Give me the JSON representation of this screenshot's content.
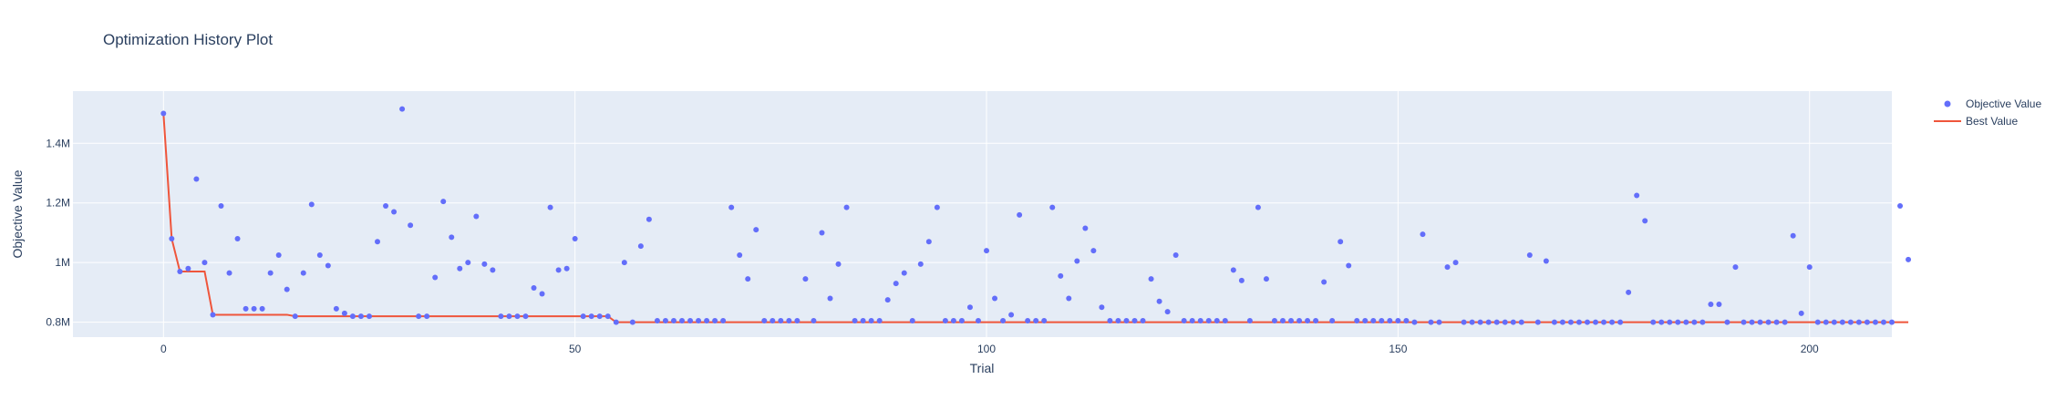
{
  "chart_data": {
    "type": "scatter",
    "title": "Optimization History Plot",
    "xlabel": "Trial",
    "ylabel": "Objective Value",
    "xlim": [
      -11,
      210
    ],
    "ylim": [
      750000,
      1575000
    ],
    "x_ticks": [
      0,
      50,
      100,
      150,
      200
    ],
    "y_ticks": [
      {
        "value": 800000,
        "label": "0.8M"
      },
      {
        "value": 1000000,
        "label": "1M"
      },
      {
        "value": 1200000,
        "label": "1.2M"
      },
      {
        "value": 1400000,
        "label": "1.4M"
      }
    ],
    "grid": true,
    "legend_position": "top-right",
    "colors": {
      "plot_background": "#e5ecf6",
      "grid": "#ffffff",
      "objective": "#636efa",
      "best": "#ef553b"
    },
    "series": [
      {
        "name": "Objective Value",
        "mode": "markers",
        "y": [
          1500000,
          1080000,
          970000,
          980000,
          1280000,
          1000000,
          825000,
          1190000,
          965000,
          1080000,
          845000,
          845000,
          845000,
          965000,
          1025000,
          910000,
          820000,
          965000,
          1195000,
          1025000,
          990000,
          845000,
          830000,
          820000,
          820000,
          820000,
          1070000,
          1190000,
          1170000,
          1515000,
          1125000,
          820000,
          820000,
          950000,
          1205000,
          1085000,
          980000,
          1000000,
          1155000,
          995000,
          975000,
          820000,
          820000,
          820000,
          820000,
          915000,
          895000,
          1185000,
          975000,
          980000,
          1080000,
          820000,
          820000,
          820000,
          820000,
          800000,
          1000000,
          800000,
          1055000,
          1145000,
          805000,
          805000,
          805000,
          805000,
          805000,
          805000,
          805000,
          805000,
          805000,
          1185000,
          1025000,
          945000,
          1110000,
          805000,
          805000,
          805000,
          805000,
          805000,
          945000,
          805000,
          1100000,
          880000,
          995000,
          1185000,
          805000,
          805000,
          805000,
          805000,
          875000,
          930000,
          965000,
          805000,
          995000,
          1070000,
          1185000,
          805000,
          805000,
          805000,
          850000,
          805000,
          1040000,
          880000,
          805000,
          825000,
          1160000,
          805000,
          805000,
          805000,
          1185000,
          955000,
          880000,
          1005000,
          1115000,
          1040000,
          850000,
          805000,
          805000,
          805000,
          805000,
          805000,
          945000,
          870000,
          835000,
          1025000,
          805000,
          805000,
          805000,
          805000,
          805000,
          805000,
          975000,
          940000,
          805000,
          1185000,
          945000,
          805000,
          805000,
          805000,
          805000,
          805000,
          805000,
          935000,
          805000,
          1070000,
          990000,
          805000,
          805000,
          805000,
          805000,
          805000,
          805000,
          805000,
          800000,
          1095000,
          800000,
          800000,
          985000,
          1000000,
          800000,
          800000,
          800000,
          800000,
          800000,
          800000,
          800000,
          800000,
          1025000,
          800000,
          1005000,
          800000,
          800000,
          800000,
          800000,
          800000,
          800000,
          800000,
          800000,
          800000,
          900000,
          1225000,
          1140000,
          800000,
          800000,
          800000,
          800000,
          800000,
          800000,
          800000,
          860000,
          860000,
          800000,
          985000,
          800000,
          800000,
          800000,
          800000,
          800000,
          800000,
          1090000,
          830000,
          985000,
          800000,
          800000,
          800000,
          800000,
          800000,
          800000,
          800000,
          800000,
          800000,
          800000,
          1190000,
          1010000
        ]
      },
      {
        "name": "Best Value",
        "mode": "lines",
        "y": [
          1500000,
          1080000,
          970000,
          970000,
          970000,
          970000,
          825000,
          825000,
          825000,
          825000,
          825000,
          825000,
          825000,
          825000,
          825000,
          825000,
          820000,
          820000,
          820000,
          820000,
          820000,
          820000,
          820000,
          820000,
          820000,
          820000,
          820000,
          820000,
          820000,
          820000,
          820000,
          820000,
          820000,
          820000,
          820000,
          820000,
          820000,
          820000,
          820000,
          820000,
          820000,
          820000,
          820000,
          820000,
          820000,
          820000,
          820000,
          820000,
          820000,
          820000,
          820000,
          820000,
          820000,
          820000,
          820000,
          800000,
          800000,
          800000,
          800000,
          800000,
          800000,
          800000,
          800000,
          800000,
          800000,
          800000,
          800000,
          800000,
          800000,
          800000,
          800000,
          800000,
          800000,
          800000,
          800000,
          800000,
          800000,
          800000,
          800000,
          800000,
          800000,
          800000,
          800000,
          800000,
          800000,
          800000,
          800000,
          800000,
          800000,
          800000,
          800000,
          800000,
          800000,
          800000,
          800000,
          800000,
          800000,
          800000,
          800000,
          800000,
          800000,
          800000,
          800000,
          800000,
          800000,
          800000,
          800000,
          800000,
          800000,
          800000,
          800000,
          800000,
          800000,
          800000,
          800000,
          800000,
          800000,
          800000,
          800000,
          800000,
          800000,
          800000,
          800000,
          800000,
          800000,
          800000,
          800000,
          800000,
          800000,
          800000,
          800000,
          800000,
          800000,
          800000,
          800000,
          800000,
          800000,
          800000,
          800000,
          800000,
          800000,
          800000,
          800000,
          800000,
          800000,
          800000,
          800000,
          800000,
          800000,
          800000,
          800000,
          800000,
          800000,
          800000,
          800000,
          800000,
          800000,
          800000,
          800000,
          800000,
          800000,
          800000,
          800000,
          800000,
          800000,
          800000,
          800000,
          800000,
          800000,
          800000,
          800000,
          800000,
          800000,
          800000,
          800000,
          800000,
          800000,
          800000,
          800000,
          800000,
          800000,
          800000,
          800000,
          800000,
          800000,
          800000,
          800000,
          800000,
          800000,
          800000,
          800000,
          800000,
          800000,
          800000,
          800000,
          800000,
          800000,
          800000,
          800000,
          800000,
          800000,
          800000,
          800000,
          800000,
          800000,
          800000,
          800000,
          800000,
          800000,
          800000,
          800000,
          800000,
          800000
        ]
      }
    ]
  }
}
